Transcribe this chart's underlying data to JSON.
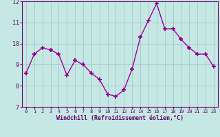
{
  "hours": [
    0,
    1,
    2,
    3,
    4,
    5,
    6,
    7,
    8,
    9,
    10,
    11,
    12,
    13,
    14,
    15,
    16,
    17,
    18,
    19,
    20,
    21,
    22,
    23
  ],
  "values": [
    8.6,
    9.5,
    9.8,
    9.7,
    9.5,
    8.5,
    9.2,
    9.0,
    8.6,
    8.3,
    7.6,
    7.5,
    7.8,
    8.8,
    10.3,
    11.1,
    11.9,
    10.7,
    10.7,
    10.2,
    9.8,
    9.5,
    9.5,
    8.9
  ],
  "line_color": "#990099",
  "marker": "+",
  "marker_size": 4,
  "bg_color": "#c5e8e5",
  "grid_color": "#a0c0bc",
  "ylim": [
    7,
    12
  ],
  "yticks": [
    7,
    8,
    9,
    10,
    11,
    12
  ],
  "xtick_labels": [
    "0",
    "1",
    "2",
    "3",
    "4",
    "5",
    "6",
    "7",
    "8",
    "9",
    "10",
    "11",
    "12",
    "13",
    "14",
    "15",
    "16",
    "17",
    "18",
    "19",
    "20",
    "21",
    "22",
    "23"
  ],
  "xlabel": "Windchill (Refroidissement éolien,°C)",
  "axis_color": "#660066",
  "tick_label_color": "#660066",
  "xlabel_color": "#660066",
  "spine_color": "#660066"
}
